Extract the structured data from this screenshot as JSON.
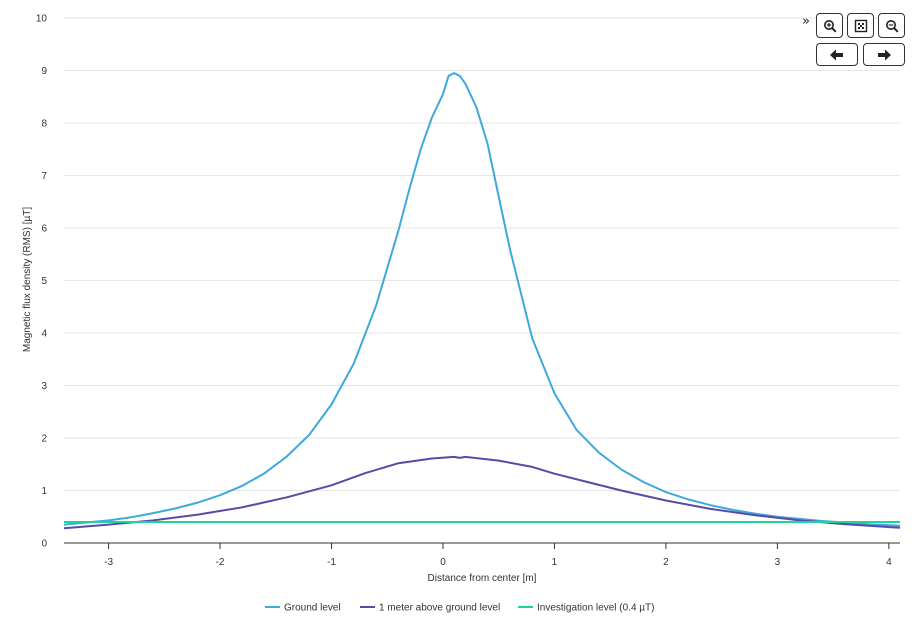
{
  "chart_data": {
    "type": "line",
    "xlabel": "Distance from center [m]",
    "ylabel": "Magnetic flux density (RMS) [µT]",
    "xlim": [
      -3.4,
      4.1
    ],
    "ylim": [
      0,
      10
    ],
    "x_ticks": [
      -3,
      -2,
      -1,
      0,
      1,
      2,
      3,
      4
    ],
    "y_ticks": [
      0,
      1,
      2,
      3,
      4,
      5,
      6,
      7,
      8,
      9,
      10
    ],
    "grid": "horizontal",
    "legend_position": "bottom-center",
    "series": [
      {
        "name": "Ground level",
        "color": "#3fa8dc",
        "points": [
          [
            -3.4,
            0.35
          ],
          [
            -3.2,
            0.39
          ],
          [
            -3.0,
            0.43
          ],
          [
            -2.8,
            0.49
          ],
          [
            -2.6,
            0.57
          ],
          [
            -2.4,
            0.66
          ],
          [
            -2.2,
            0.77
          ],
          [
            -2.0,
            0.91
          ],
          [
            -1.8,
            1.09
          ],
          [
            -1.6,
            1.33
          ],
          [
            -1.4,
            1.65
          ],
          [
            -1.2,
            2.06
          ],
          [
            -1.0,
            2.64
          ],
          [
            -0.8,
            3.42
          ],
          [
            -0.6,
            4.52
          ],
          [
            -0.4,
            5.95
          ],
          [
            -0.3,
            6.75
          ],
          [
            -0.2,
            7.5
          ],
          [
            -0.1,
            8.1
          ],
          [
            0.0,
            8.55
          ],
          [
            0.05,
            8.9
          ],
          [
            0.1,
            8.95
          ],
          [
            0.15,
            8.9
          ],
          [
            0.2,
            8.75
          ],
          [
            0.3,
            8.3
          ],
          [
            0.4,
            7.6
          ],
          [
            0.5,
            6.6
          ],
          [
            0.6,
            5.6
          ],
          [
            0.8,
            3.9
          ],
          [
            1.0,
            2.85
          ],
          [
            1.2,
            2.15
          ],
          [
            1.4,
            1.72
          ],
          [
            1.6,
            1.4
          ],
          [
            1.8,
            1.16
          ],
          [
            2.0,
            0.97
          ],
          [
            2.2,
            0.83
          ],
          [
            2.4,
            0.72
          ],
          [
            2.6,
            0.63
          ],
          [
            2.8,
            0.56
          ],
          [
            3.0,
            0.5
          ],
          [
            3.2,
            0.46
          ],
          [
            3.4,
            0.42
          ],
          [
            3.6,
            0.39
          ],
          [
            3.8,
            0.36
          ],
          [
            4.1,
            0.33
          ]
        ]
      },
      {
        "name": "1 meter above ground level",
        "color": "#5a4aa8",
        "points": [
          [
            -3.4,
            0.28
          ],
          [
            -3.0,
            0.35
          ],
          [
            -2.6,
            0.43
          ],
          [
            -2.2,
            0.54
          ],
          [
            -1.8,
            0.68
          ],
          [
            -1.4,
            0.87
          ],
          [
            -1.0,
            1.1
          ],
          [
            -0.7,
            1.33
          ],
          [
            -0.4,
            1.52
          ],
          [
            -0.1,
            1.61
          ],
          [
            0.1,
            1.64
          ],
          [
            0.15,
            1.62
          ],
          [
            0.2,
            1.64
          ],
          [
            0.5,
            1.57
          ],
          [
            0.8,
            1.45
          ],
          [
            1.0,
            1.32
          ],
          [
            1.3,
            1.16
          ],
          [
            1.6,
            1.0
          ],
          [
            2.0,
            0.81
          ],
          [
            2.4,
            0.65
          ],
          [
            2.8,
            0.53
          ],
          [
            3.2,
            0.43
          ],
          [
            3.6,
            0.36
          ],
          [
            4.1,
            0.29
          ]
        ]
      },
      {
        "name": "Investigation level (0.4 µT)",
        "color": "#1fd49a",
        "points": [
          [
            -3.4,
            0.4
          ],
          [
            4.1,
            0.4
          ]
        ]
      }
    ]
  },
  "toolbar": {
    "collapse_icon": "double-chevron-right-icon",
    "zoom_in_icon": "zoom-in-icon",
    "reset_icon": "reset-zoom-icon",
    "zoom_out_icon": "zoom-out-icon",
    "pan_left_icon": "arrow-left-icon",
    "pan_right_icon": "arrow-right-icon"
  }
}
